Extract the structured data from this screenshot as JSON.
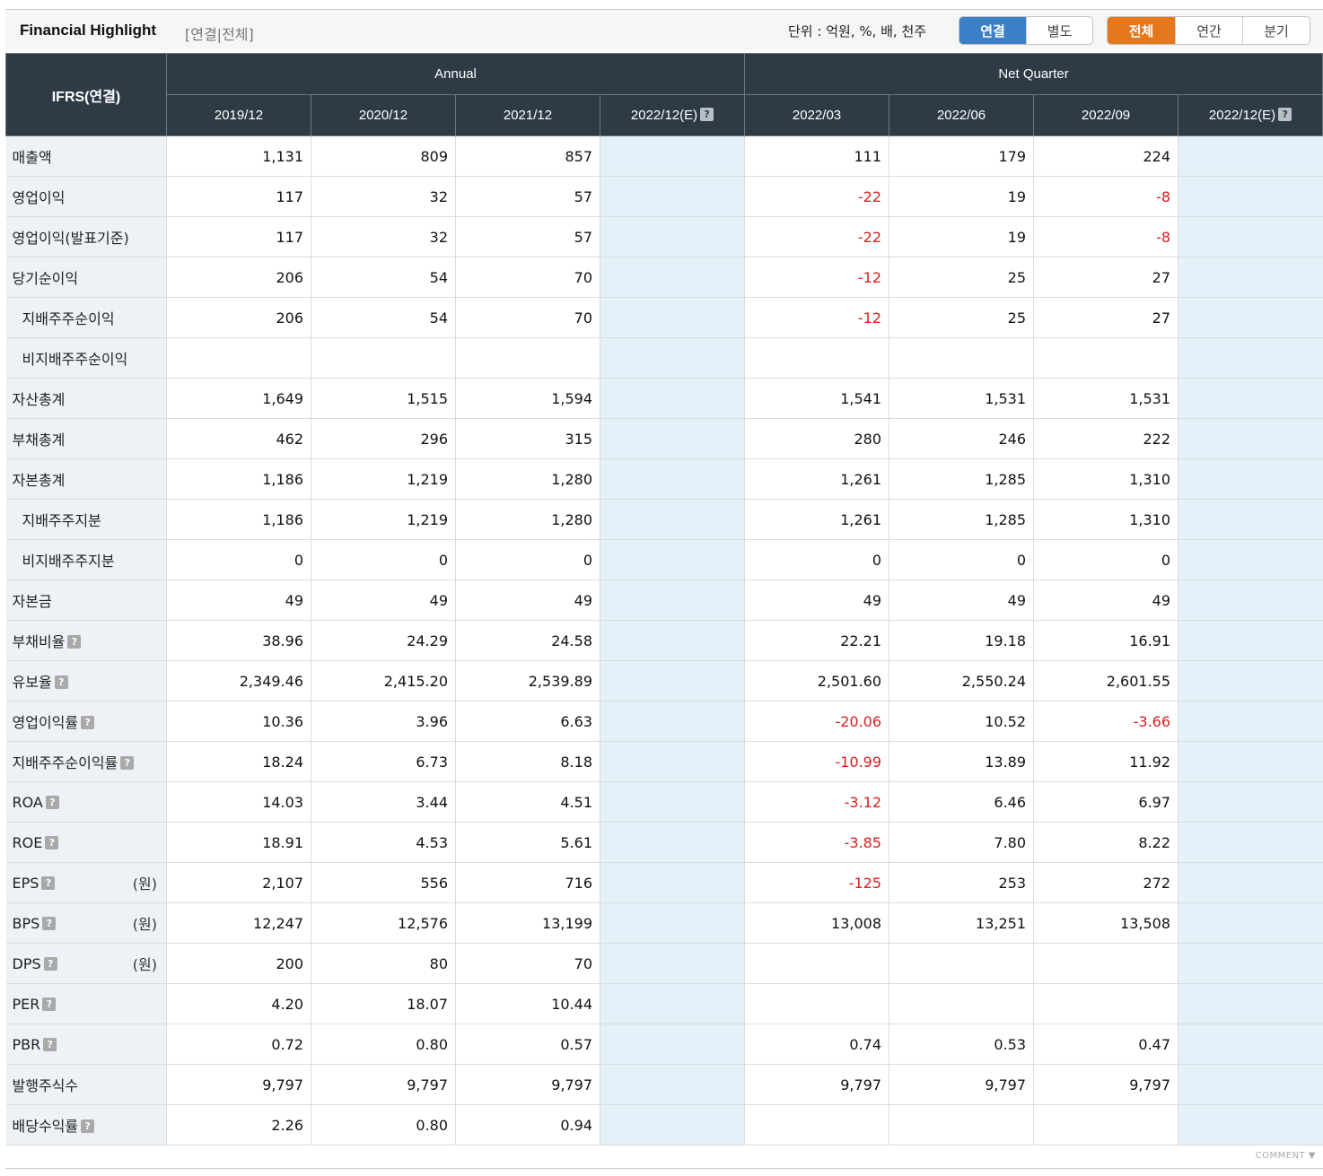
{
  "header": {
    "title": "Financial Highlight",
    "subtitle": "[연결|전체]",
    "unit": "단위 : 억원, %, 배, 천주",
    "basis_buttons": [
      {
        "label": "연결",
        "active": true
      },
      {
        "label": "별도",
        "active": false
      }
    ],
    "period_buttons": [
      {
        "label": "전체",
        "active": true
      },
      {
        "label": "연간",
        "active": false
      },
      {
        "label": "분기",
        "active": false
      }
    ]
  },
  "table": {
    "corner": "IFRS(연결)",
    "groups": {
      "annual": "Annual",
      "quarter": "Net Quarter"
    },
    "columns": [
      "2019/12",
      "2020/12",
      "2021/12",
      "2022/12(E)",
      "2022/03",
      "2022/06",
      "2022/09",
      "2022/12(E)"
    ],
    "rows": [
      {
        "label": "매출액",
        "values": [
          "1,131",
          "809",
          "857",
          "",
          "111",
          "179",
          "224",
          ""
        ]
      },
      {
        "label": "영업이익",
        "values": [
          "117",
          "32",
          "57",
          "",
          "-22",
          "19",
          "-8",
          ""
        ]
      },
      {
        "label": "영업이익(발표기준)",
        "values": [
          "117",
          "32",
          "57",
          "",
          "-22",
          "19",
          "-8",
          ""
        ]
      },
      {
        "label": "당기순이익",
        "values": [
          "206",
          "54",
          "70",
          "",
          "-12",
          "25",
          "27",
          ""
        ]
      },
      {
        "label": "지배주주순이익",
        "indent": true,
        "values": [
          "206",
          "54",
          "70",
          "",
          "-12",
          "25",
          "27",
          ""
        ]
      },
      {
        "label": "비지배주주순이익",
        "indent": true,
        "values": [
          "",
          "",
          "",
          "",
          "",
          "",
          "",
          ""
        ]
      },
      {
        "label": "자산총계",
        "values": [
          "1,649",
          "1,515",
          "1,594",
          "",
          "1,541",
          "1,531",
          "1,531",
          ""
        ]
      },
      {
        "label": "부채총계",
        "values": [
          "462",
          "296",
          "315",
          "",
          "280",
          "246",
          "222",
          ""
        ]
      },
      {
        "label": "자본총계",
        "values": [
          "1,186",
          "1,219",
          "1,280",
          "",
          "1,261",
          "1,285",
          "1,310",
          ""
        ]
      },
      {
        "label": "지배주주지분",
        "indent": true,
        "values": [
          "1,186",
          "1,219",
          "1,280",
          "",
          "1,261",
          "1,285",
          "1,310",
          ""
        ]
      },
      {
        "label": "비지배주주지분",
        "indent": true,
        "values": [
          "0",
          "0",
          "0",
          "",
          "0",
          "0",
          "0",
          ""
        ]
      },
      {
        "label": "자본금",
        "values": [
          "49",
          "49",
          "49",
          "",
          "49",
          "49",
          "49",
          ""
        ]
      },
      {
        "label": "부채비율",
        "help": true,
        "values": [
          "38.96",
          "24.29",
          "24.58",
          "",
          "22.21",
          "19.18",
          "16.91",
          ""
        ]
      },
      {
        "label": "유보율",
        "help": true,
        "values": [
          "2,349.46",
          "2,415.20",
          "2,539.89",
          "",
          "2,501.60",
          "2,550.24",
          "2,601.55",
          ""
        ]
      },
      {
        "label": "영업이익률",
        "help": true,
        "values": [
          "10.36",
          "3.96",
          "6.63",
          "",
          "-20.06",
          "10.52",
          "-3.66",
          ""
        ]
      },
      {
        "label": "지배주주순이익률",
        "help": true,
        "values": [
          "18.24",
          "6.73",
          "8.18",
          "",
          "-10.99",
          "13.89",
          "11.92",
          ""
        ]
      },
      {
        "label": "ROA",
        "help": true,
        "values": [
          "14.03",
          "3.44",
          "4.51",
          "",
          "-3.12",
          "6.46",
          "6.97",
          ""
        ]
      },
      {
        "label": "ROE",
        "help": true,
        "values": [
          "18.91",
          "4.53",
          "5.61",
          "",
          "-3.85",
          "7.80",
          "8.22",
          ""
        ]
      },
      {
        "label": "EPS",
        "help": true,
        "unit": "(원)",
        "values": [
          "2,107",
          "556",
          "716",
          "",
          "-125",
          "253",
          "272",
          ""
        ]
      },
      {
        "label": "BPS",
        "help": true,
        "unit": "(원)",
        "values": [
          "12,247",
          "12,576",
          "13,199",
          "",
          "13,008",
          "13,251",
          "13,508",
          ""
        ]
      },
      {
        "label": "DPS",
        "help": true,
        "unit": "(원)",
        "values": [
          "200",
          "80",
          "70",
          "",
          "",
          "",
          "",
          ""
        ]
      },
      {
        "label": "PER",
        "help": true,
        "values": [
          "4.20",
          "18.07",
          "10.44",
          "",
          "",
          "",
          "",
          ""
        ]
      },
      {
        "label": "PBR",
        "help": true,
        "values": [
          "0.72",
          "0.80",
          "0.57",
          "",
          "0.74",
          "0.53",
          "0.47",
          ""
        ]
      },
      {
        "label": "발행주식수",
        "values": [
          "9,797",
          "9,797",
          "9,797",
          "",
          "9,797",
          "9,797",
          "9,797",
          ""
        ]
      },
      {
        "label": "배당수익률",
        "help": true,
        "values": [
          "2.26",
          "0.80",
          "0.94",
          "",
          "",
          "",
          "",
          ""
        ]
      }
    ]
  },
  "footer": {
    "comment": "COMMENT ▼"
  }
}
